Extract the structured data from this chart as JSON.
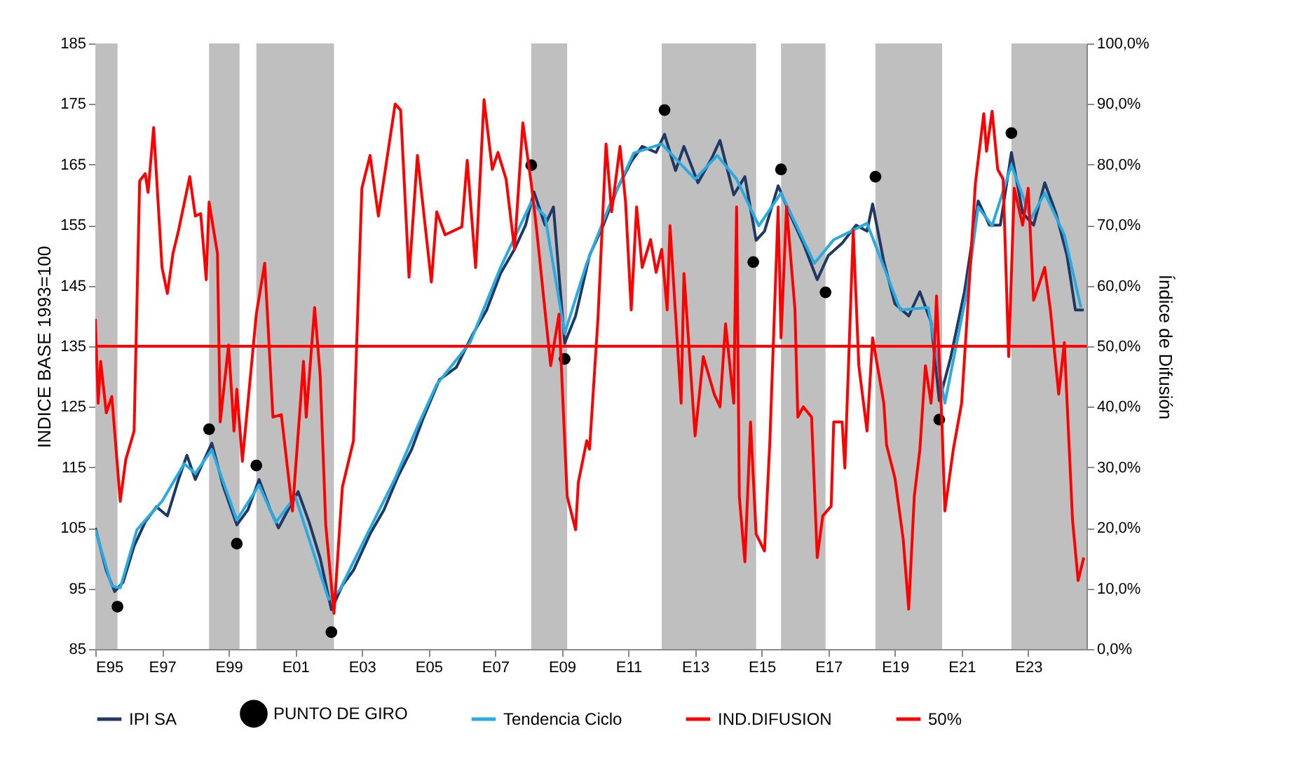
{
  "chart_data": {
    "type": "line",
    "ylabel": "INDICE BASE 1993=100",
    "y2label": "Índice de Difusión",
    "xlim": [
      "1995-01",
      "2024-10"
    ],
    "xticks": [
      {
        "value": "1995-01",
        "label": "E95"
      },
      {
        "value": "1997-01",
        "label": "E97"
      },
      {
        "value": "1999-01",
        "label": "E99"
      },
      {
        "value": "2001-01",
        "label": "E01"
      },
      {
        "value": "2003-01",
        "label": "E03"
      },
      {
        "value": "2005-01",
        "label": "E05"
      },
      {
        "value": "2007-01",
        "label": "E07"
      },
      {
        "value": "2009-01",
        "label": "E09"
      },
      {
        "value": "2011-01",
        "label": "E11"
      },
      {
        "value": "2013-01",
        "label": "E13"
      },
      {
        "value": "2015-01",
        "label": "E15"
      },
      {
        "value": "2017-01",
        "label": "E17"
      },
      {
        "value": "2019-01",
        "label": "E19"
      },
      {
        "value": "2021-01",
        "label": "E21"
      },
      {
        "value": "2023-01",
        "label": "E23"
      }
    ],
    "ylim": [
      85,
      185
    ],
    "yticks": [
      85,
      95,
      105,
      115,
      125,
      135,
      145,
      155,
      165,
      175,
      185
    ],
    "y2lim": [
      0,
      100
    ],
    "y2ticks": [
      {
        "value": 0,
        "label": "0,0%"
      },
      {
        "value": 10,
        "label": "10,0%"
      },
      {
        "value": 20,
        "label": "20,0%"
      },
      {
        "value": 30,
        "label": "30,0%"
      },
      {
        "value": 40,
        "label": "40,0%"
      },
      {
        "value": 50,
        "label": "50,0%"
      },
      {
        "value": 60,
        "label": "60,0%"
      },
      {
        "value": 70,
        "label": "70,0%"
      },
      {
        "value": 80,
        "label": "80,0%"
      },
      {
        "value": 90,
        "label": "90,0%"
      },
      {
        "value": 100,
        "label": "100,0%"
      }
    ],
    "legend": "bottom",
    "bands": [
      {
        "axis": "x",
        "from": "1995-01",
        "to": "1995-09",
        "label": null,
        "color": "#bfbfbf"
      },
      {
        "axis": "x",
        "from": "1998-06",
        "to": "1999-05",
        "label": null,
        "color": "#bfbfbf"
      },
      {
        "axis": "x",
        "from": "1999-11",
        "to": "2002-03",
        "label": null,
        "color": "#bfbfbf"
      },
      {
        "axis": "x",
        "from": "2008-02",
        "to": "2009-03",
        "label": null,
        "color": "#bfbfbf"
      },
      {
        "axis": "x",
        "from": "2012-01",
        "to": "2014-11",
        "label": null,
        "color": "#bfbfbf"
      },
      {
        "axis": "x",
        "from": "2015-08",
        "to": "2016-12",
        "label": null,
        "color": "#bfbfbf"
      },
      {
        "axis": "x",
        "from": "2018-06",
        "to": "2020-06",
        "label": null,
        "color": "#bfbfbf"
      },
      {
        "axis": "x",
        "from": "2022-07",
        "to": "2024-10",
        "label": null,
        "color": "#bfbfbf"
      }
    ],
    "series": [
      {
        "name": "IPI SA",
        "color": "#1f3864",
        "x": [
          "1995-01",
          "1995-05",
          "1995-08",
          "1995-11",
          "1996-03",
          "1996-07",
          "1996-11",
          "1997-03",
          "1997-07",
          "1997-10",
          "1998-01",
          "1998-04",
          "1998-07",
          "1998-11",
          "1999-04",
          "1999-08",
          "1999-12",
          "2000-04",
          "2000-07",
          "2000-11",
          "2001-02",
          "2001-06",
          "2001-10",
          "2002-02",
          "2002-06",
          "2002-10",
          "2003-04",
          "2003-09",
          "2004-02",
          "2004-07",
          "2004-11",
          "2005-05",
          "2005-11",
          "2006-05",
          "2006-10",
          "2007-03",
          "2007-08",
          "2007-12",
          "2008-03",
          "2008-07",
          "2008-10",
          "2009-02",
          "2009-06",
          "2009-11",
          "2010-04",
          "2010-09",
          "2011-02",
          "2011-06",
          "2011-11",
          "2012-02",
          "2012-06",
          "2012-09",
          "2013-02",
          "2013-07",
          "2013-10",
          "2014-03",
          "2014-07",
          "2014-11",
          "2015-02",
          "2015-07",
          "2015-11",
          "2016-04",
          "2016-09",
          "2017-01",
          "2017-06",
          "2017-11",
          "2018-03",
          "2018-05",
          "2018-09",
          "2019-01",
          "2019-06",
          "2019-10",
          "2020-02",
          "2020-05",
          "2020-09",
          "2021-02",
          "2021-07",
          "2021-11",
          "2022-03",
          "2022-07",
          "2022-11",
          "2023-03",
          "2023-07",
          "2023-11",
          "2024-03",
          "2024-06",
          "2024-09"
        ],
        "values": [
          105,
          98,
          94.5,
          96,
          102,
          106,
          108.5,
          107,
          113,
          117,
          113,
          116,
          119,
          112,
          105.5,
          108,
          113,
          108,
          105,
          108.5,
          111,
          106,
          100,
          91.5,
          95.5,
          98,
          104,
          108,
          113.5,
          118,
          123,
          129.5,
          131.5,
          137,
          141,
          147,
          151,
          155,
          160.5,
          155,
          158,
          135.5,
          140,
          150,
          155,
          161,
          165.5,
          168,
          167,
          170,
          164,
          168,
          162,
          166,
          169,
          160,
          163,
          152.5,
          154,
          161.5,
          157,
          152,
          146,
          150,
          152,
          155,
          154,
          158.5,
          149,
          142,
          140,
          144,
          139,
          126,
          133,
          144,
          159,
          155,
          155,
          167,
          157,
          155,
          162,
          157,
          150,
          141,
          141
        ]
      },
      {
        "name": "PUNTO DE GIRO",
        "type": "scatter",
        "color": "#000000",
        "x": [
          "1995-09",
          "1998-06",
          "1999-04",
          "1999-11",
          "2002-02",
          "2008-02",
          "2009-02",
          "2012-02",
          "2014-10",
          "2015-08",
          "2016-12",
          "2018-06",
          "2020-05",
          "2022-07"
        ],
        "values": [
          92.0,
          121.3,
          102.4,
          115.3,
          87.8,
          164.9,
          132.9,
          174.0,
          148.9,
          164.2,
          143.9,
          163.0,
          122.9,
          170.2
        ]
      },
      {
        "name": "Tendencia Ciclo",
        "color": "#29abe2",
        "x": [
          "1995-01",
          "1995-07",
          "1995-10",
          "1996-04",
          "1997-01",
          "1997-09",
          "1998-01",
          "1998-07",
          "1999-04",
          "1999-12",
          "2000-06",
          "2001-01",
          "2002-01",
          "2002-05",
          "2003-03",
          "2004-01",
          "2004-09",
          "2005-04",
          "2006-04",
          "2007-03",
          "2008-02",
          "2008-07",
          "2009-02",
          "2009-10",
          "2010-06",
          "2011-03",
          "2012-01",
          "2013-01",
          "2013-09",
          "2014-04",
          "2014-12",
          "2015-08",
          "2016-08",
          "2017-03",
          "2018-03",
          "2019-03",
          "2020-01",
          "2020-07",
          "2021-03",
          "2021-07",
          "2021-12",
          "2022-07",
          "2023-02",
          "2023-07",
          "2024-02",
          "2024-08"
        ],
        "values": [
          104.7,
          95.4,
          95.1,
          104.7,
          109.4,
          115.6,
          114.0,
          117.9,
          106.3,
          112.1,
          105.9,
          110.2,
          93.2,
          94.7,
          104.0,
          113.2,
          121.7,
          128.7,
          135.6,
          148.0,
          158.8,
          156.5,
          137.1,
          148.7,
          158.0,
          166.9,
          168.4,
          162.6,
          166.5,
          162.6,
          154.9,
          160.3,
          148.7,
          152.6,
          155.3,
          141.0,
          141.4,
          125.6,
          144.1,
          158.0,
          154.9,
          164.9,
          156.1,
          160.3,
          153.4,
          141.4
        ]
      },
      {
        "name": "IND.DIFUSION",
        "axis": "y2",
        "color": "#ff0000",
        "x": [
          "1995-01",
          "1995-02",
          "1995-03",
          "1995-05",
          "1995-07",
          "1995-10",
          "1995-12",
          "1996-03",
          "1996-05",
          "1996-07",
          "1996-08",
          "1996-10",
          "1997-01",
          "1997-03",
          "1997-05",
          "1997-07",
          "1997-11",
          "1998-01",
          "1998-03",
          "1998-05",
          "1998-06",
          "1998-09",
          "1998-10",
          "1999-01",
          "1999-03",
          "1999-04",
          "1999-06",
          "1999-11",
          "2000-02",
          "2000-05",
          "2000-08",
          "2000-12",
          "2001-04",
          "2001-05",
          "2001-08",
          "2001-10",
          "2001-12",
          "2002-03",
          "2002-06",
          "2002-10",
          "2003-01",
          "2003-04",
          "2003-07",
          "2004-01",
          "2004-03",
          "2004-06",
          "2004-09",
          "2005-02",
          "2005-04",
          "2005-07",
          "2006-01",
          "2006-03",
          "2006-06",
          "2006-09",
          "2006-12",
          "2007-02",
          "2007-05",
          "2007-08",
          "2007-11",
          "2008-02",
          "2008-04",
          "2008-09",
          "2008-12",
          "2009-03",
          "2009-06",
          "2009-07",
          "2009-10",
          "2009-11",
          "2010-02",
          "2010-05",
          "2010-07",
          "2010-10",
          "2010-12",
          "2011-02",
          "2011-04",
          "2011-06",
          "2011-09",
          "2011-11",
          "2012-01",
          "2012-03",
          "2012-04",
          "2012-08",
          "2012-09",
          "2013-01",
          "2013-04",
          "2013-08",
          "2013-10",
          "2013-12",
          "2014-03",
          "2014-04",
          "2014-05",
          "2014-07",
          "2014-09",
          "2014-11",
          "2015-02",
          "2015-04",
          "2015-07",
          "2015-08",
          "2015-10",
          "2016-01",
          "2016-02",
          "2016-04",
          "2016-07",
          "2016-09",
          "2016-11",
          "2017-02",
          "2017-03",
          "2017-06",
          "2017-07",
          "2017-10",
          "2017-12",
          "2018-03",
          "2018-05",
          "2018-09",
          "2018-10",
          "2019-01",
          "2019-04",
          "2019-06",
          "2019-08",
          "2019-10",
          "2019-12",
          "2020-02",
          "2020-03",
          "2020-04",
          "2020-06",
          "2020-07",
          "2020-10",
          "2021-01",
          "2021-03",
          "2021-06",
          "2021-09",
          "2021-10",
          "2021-12",
          "2022-02",
          "2022-04",
          "2022-06",
          "2022-08",
          "2022-11",
          "2023-01",
          "2023-03",
          "2023-07",
          "2023-09",
          "2023-12",
          "2024-02",
          "2024-05",
          "2024-07",
          "2024-09"
        ],
        "values": [
          54.5,
          40.6,
          47.5,
          39.0,
          41.7,
          24.4,
          31.3,
          36.0,
          77.3,
          78.5,
          75.4,
          86.1,
          63.0,
          58.7,
          65.3,
          69.1,
          78.0,
          71.5,
          71.9,
          61.0,
          73.8,
          65.3,
          37.5,
          50.2,
          36.0,
          42.9,
          31.0,
          55.3,
          63.7,
          38.3,
          38.7,
          22.8,
          47.5,
          38.3,
          56.4,
          45.2,
          20.5,
          5.9,
          26.7,
          34.4,
          76.1,
          81.5,
          71.5,
          90.0,
          89.0,
          61.4,
          81.5,
          60.6,
          72.2,
          68.4,
          69.7,
          80.7,
          63.0,
          90.7,
          79.2,
          82.0,
          77.6,
          66.0,
          86.9,
          76.9,
          69.1,
          46.8,
          55.3,
          25.2,
          19.7,
          27.5,
          34.4,
          33.0,
          54.5,
          83.4,
          72.2,
          83.0,
          73.8,
          56.0,
          73.0,
          63.0,
          67.6,
          62.2,
          66.0,
          56.0,
          69.9,
          40.6,
          62.0,
          35.2,
          48.3,
          42.0,
          40.0,
          53.7,
          40.6,
          73.0,
          25.2,
          14.4,
          37.5,
          19.0,
          16.2,
          34.4,
          73.0,
          51.4,
          73.0,
          56.0,
          38.3,
          40.0,
          38.3,
          15.1,
          22.0,
          23.6,
          37.5,
          37.5,
          29.9,
          69.1,
          46.8,
          36.0,
          51.4,
          40.6,
          33.7,
          28.2,
          18.2,
          6.6,
          25.2,
          32.9,
          46.8,
          40.6,
          46.8,
          58.3,
          36.7,
          22.8,
          32.9,
          40.6,
          54.5,
          76.9,
          88.4,
          82.2,
          88.8,
          79.2,
          77.6,
          48.3,
          76.1,
          70.0,
          76.1,
          57.6,
          63.0,
          56.0,
          42.1,
          50.6,
          21.3,
          11.3,
          15.1
        ]
      },
      {
        "name": "50%",
        "axis": "y2",
        "color": "#ff0000",
        "x": [
          "1995-01",
          "2024-10"
        ],
        "values": [
          50,
          50
        ]
      }
    ]
  }
}
